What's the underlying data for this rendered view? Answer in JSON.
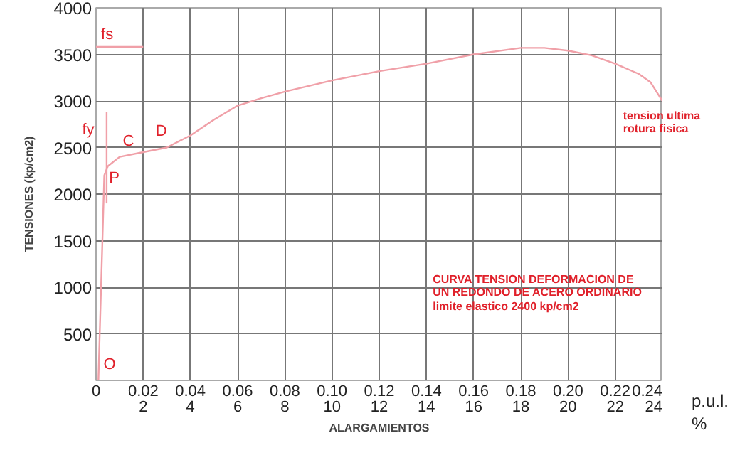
{
  "chart_data": {
    "type": "line",
    "xlabel": "ALARGAMIENTOS",
    "ylabel": "TENSIONES (kp/cm2)",
    "xlim": [
      0,
      0.24
    ],
    "ylim": [
      0,
      4000
    ],
    "xticks": [
      0,
      0.02,
      0.04,
      0.06,
      0.08,
      {
        "value": 0.1,
        "label": "0.10"
      },
      0.12,
      0.14,
      0.16,
      0.18,
      {
        "value": 0.2,
        "label": "0.20"
      },
      0.22,
      0.24
    ],
    "x2lim": [
      0,
      24
    ],
    "x2ticks": [
      2,
      4,
      6,
      8,
      10,
      12,
      14,
      16,
      18,
      20,
      22,
      24
    ],
    "yticks": [
      500,
      1000,
      1500,
      2000,
      2500,
      3000,
      3500,
      4000
    ],
    "grid": true,
    "marker": "none",
    "line_style": "solid",
    "series": [
      {
        "color": "#f0a0a8",
        "x": [
          0.001,
          0.0035,
          0.005,
          0.01,
          0.02,
          0.03,
          0.04,
          0.05,
          0.06,
          0.07,
          0.08,
          0.1,
          0.12,
          0.14,
          0.16,
          0.18,
          0.19,
          0.2,
          0.21,
          0.22,
          0.23,
          0.235,
          0.24
        ],
        "values": [
          0,
          2200,
          2300,
          2400,
          2450,
          2500,
          2630,
          2800,
          2950,
          3030,
          3100,
          3220,
          3320,
          3400,
          3500,
          3570,
          3570,
          3540,
          3490,
          3400,
          3290,
          3200,
          3000
        ]
      },
      {
        "color": "#f0a0a8",
        "x": [
          0,
          0.02
        ],
        "values": [
          3580,
          3580
        ]
      },
      {
        "color": "#f0a0a8",
        "x": [
          0.0045,
          0.0045
        ],
        "values": [
          1900,
          2880
        ]
      }
    ],
    "annotations": [
      "fs",
      "fy",
      "C",
      "D",
      "P",
      "O",
      {
        "text": "tension ultima\nrotura fisica",
        "x": 0.24,
        "y": 3000
      },
      "CURVA TENSION DEFORMACION DE\nUN REDONDO DE ACERO ORDINARIO\nlimite elastico 2400 kp/cm2",
      "p.u.l.",
      "%"
    ]
  }
}
